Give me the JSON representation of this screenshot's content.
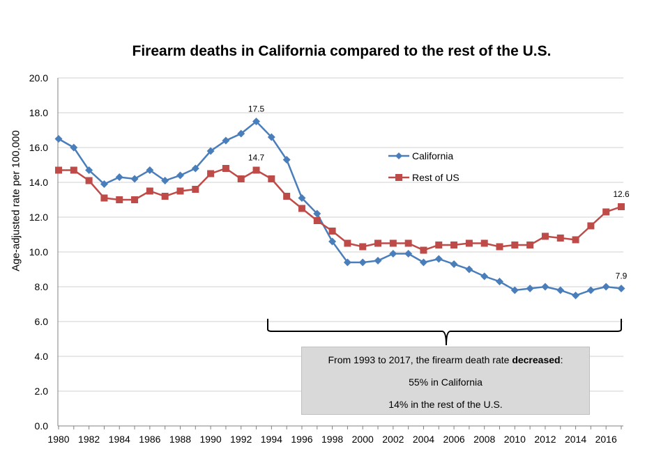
{
  "chart_data": {
    "type": "line",
    "title": "Firearm deaths in California compared to the rest of the U.S.",
    "ylabel": "Age-adjusted rate per 100,000",
    "xlabel": "",
    "ylim": [
      0,
      20
    ],
    "ytick_labels": [
      "0.0",
      "2.0",
      "4.0",
      "6.0",
      "8.0",
      "10.0",
      "12.0",
      "14.0",
      "16.0",
      "18.0",
      "20.0"
    ],
    "xtick_labels": [
      "1980",
      "1982",
      "1984",
      "1986",
      "1988",
      "1990",
      "1992",
      "1994",
      "1996",
      "1998",
      "2000",
      "2002",
      "2004",
      "2006",
      "2008",
      "2010",
      "2012",
      "2014",
      "2016"
    ],
    "x": [
      1980,
      1981,
      1982,
      1983,
      1984,
      1985,
      1986,
      1987,
      1988,
      1989,
      1990,
      1991,
      1992,
      1993,
      1994,
      1995,
      1996,
      1997,
      1998,
      1999,
      2000,
      2001,
      2002,
      2003,
      2004,
      2005,
      2006,
      2007,
      2008,
      2009,
      2010,
      2011,
      2012,
      2013,
      2014,
      2015,
      2016,
      2017
    ],
    "grid": "horizontal",
    "legend_position": "center-right",
    "series": [
      {
        "name": "California",
        "color": "#4a7ebb",
        "marker": "diamond",
        "values": [
          16.5,
          16.0,
          14.7,
          13.9,
          14.3,
          14.2,
          14.7,
          14.1,
          14.4,
          14.8,
          15.8,
          16.4,
          16.8,
          17.5,
          16.6,
          15.3,
          13.1,
          12.2,
          10.6,
          9.4,
          9.4,
          9.5,
          9.9,
          9.9,
          9.4,
          9.6,
          9.3,
          9.0,
          8.6,
          8.3,
          7.8,
          7.9,
          8.0,
          7.8,
          7.5,
          7.8,
          8.0,
          7.9
        ]
      },
      {
        "name": "Rest of US",
        "color": "#be4b48",
        "marker": "square",
        "values": [
          14.7,
          14.7,
          14.1,
          13.1,
          13.0,
          13.0,
          13.5,
          13.2,
          13.5,
          13.6,
          14.5,
          14.8,
          14.2,
          14.7,
          14.2,
          13.2,
          12.5,
          11.8,
          11.2,
          10.5,
          10.3,
          10.5,
          10.5,
          10.5,
          10.1,
          10.4,
          10.4,
          10.5,
          10.5,
          10.3,
          10.4,
          10.4,
          10.9,
          10.8,
          10.7,
          11.5,
          12.3,
          12.6
        ]
      }
    ],
    "data_labels": [
      {
        "series": "California",
        "x": 1993,
        "text": "17.5"
      },
      {
        "series": "Rest of US",
        "x": 1993,
        "text": "14.7"
      },
      {
        "series": "Rest of US",
        "x": 2017,
        "text": "12.6"
      },
      {
        "series": "California",
        "x": 2017,
        "text": "7.9"
      }
    ],
    "annotation": {
      "line1_prefix": "From 1993 to 2017, the firearm death rate ",
      "line1_bold": "decreased",
      "line1_suffix": ":",
      "line2": "55% in California",
      "line3": "14% in the rest of the U.S."
    }
  }
}
